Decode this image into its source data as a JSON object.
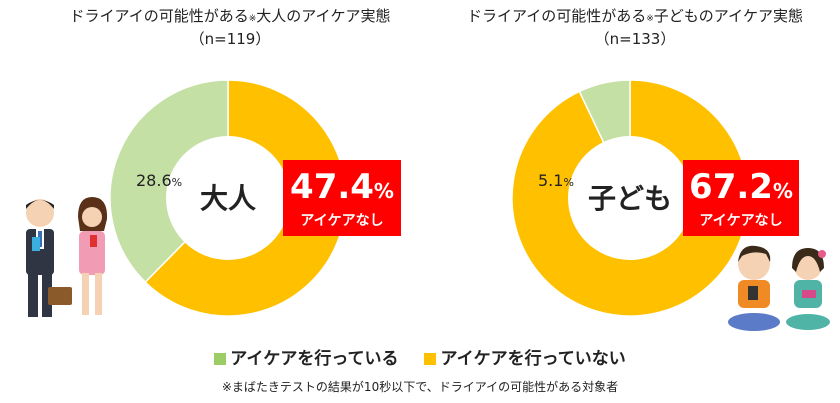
{
  "chart_data": [
    {
      "type": "pie",
      "title_main": "ドライアイの可能性がある",
      "title_mark": "※",
      "title_tail": "大人のアイケア実態",
      "n_label": "（n=119）",
      "center_label": "大人",
      "slices": [
        {
          "label": "アイケアを行っていない",
          "value": 47.4,
          "color": "#ffc000"
        },
        {
          "label": "アイケアを行っている",
          "value": 28.6,
          "color": "#c5e0a5"
        }
      ],
      "callout_value": "47.4",
      "callout_unit": "%",
      "callout_sub": "アイケアなし",
      "secondary_value": "28.6",
      "secondary_unit": "%"
    },
    {
      "type": "pie",
      "title_main": "ドライアイの可能性がある",
      "title_mark": "※",
      "title_tail": "子どものアイケア実態",
      "n_label": "（n=133）",
      "center_label": "子ども",
      "slices": [
        {
          "label": "アイケアを行っていない",
          "value": 67.2,
          "color": "#ffc000"
        },
        {
          "label": "アイケアを行っている",
          "value": 5.1,
          "color": "#c5e0a5"
        }
      ],
      "callout_value": "67.2",
      "callout_unit": "%",
      "callout_sub": "アイケアなし",
      "secondary_value": "5.1",
      "secondary_unit": "%"
    }
  ],
  "legend": [
    {
      "label": "アイケアを行っている",
      "color": "#9ccc65"
    },
    {
      "label": "アイケアを行っていない",
      "color": "#ffc000"
    }
  ],
  "footnote": "※まばたきテストの結果が10秒以下で、ドライアイの可能性がある対象者"
}
